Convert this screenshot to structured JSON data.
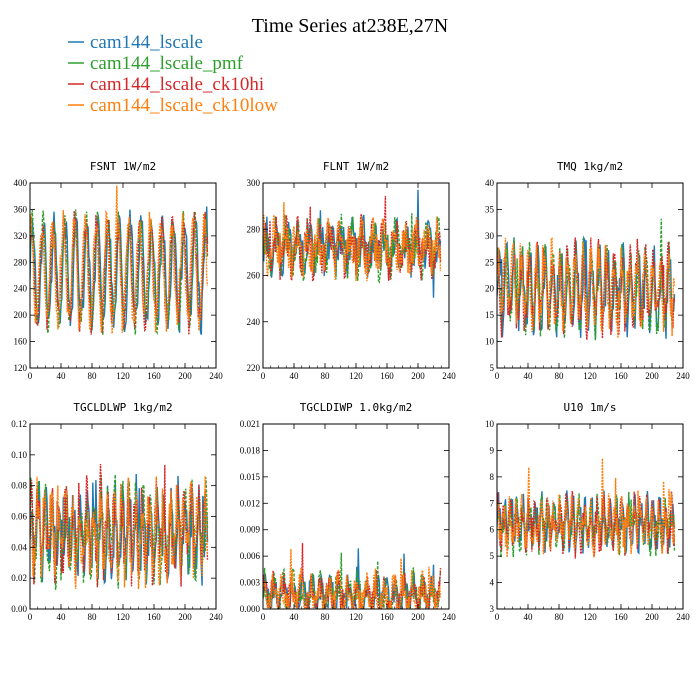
{
  "figure": {
    "title": "Time Series at238E,27N"
  },
  "legend": [
    {
      "label": "cam144_lscale",
      "color": "#1f77b4"
    },
    {
      "label": "cam144_lscale_pmf",
      "color": "#2ca02c"
    },
    {
      "label": "cam144_lscale_ck10hi",
      "color": "#d62728"
    },
    {
      "label": "cam144_lscale_ck10low",
      "color": "#ff7f0e"
    }
  ],
  "chart_data": [
    {
      "type": "line",
      "title": "FSNT  1W/m2",
      "xlim": [
        0,
        240
      ],
      "xticks": [
        "0",
        "40",
        "80",
        "120",
        "160",
        "200",
        "240"
      ],
      "ylim": [
        120,
        400
      ],
      "yticks": [
        "120",
        "160",
        "200",
        "240",
        "280",
        "320",
        "360",
        "400"
      ],
      "n_points": 230,
      "series_summary": {
        "baseline": 265,
        "amplitude": 75,
        "period": 14,
        "noise": 22
      }
    },
    {
      "type": "line",
      "title": "FLNT  1W/m2",
      "xlim": [
        0,
        240
      ],
      "xticks": [
        "0",
        "40",
        "80",
        "120",
        "160",
        "200",
        "240"
      ],
      "ylim": [
        220,
        300
      ],
      "yticks": [
        "220",
        "240",
        "260",
        "280",
        "300"
      ],
      "n_points": 230,
      "series_summary": {
        "baseline": 272,
        "amplitude": 6,
        "period": 14,
        "noise": 9
      }
    },
    {
      "type": "line",
      "title": "TMQ  1kg/m2",
      "xlim": [
        0,
        240
      ],
      "xticks": [
        "0",
        "40",
        "80",
        "120",
        "160",
        "200",
        "240"
      ],
      "ylim": [
        5,
        40
      ],
      "yticks": [
        "5",
        "10",
        "15",
        "20",
        "25",
        "30",
        "35",
        "40"
      ],
      "n_points": 230,
      "series_summary": {
        "baseline": 20,
        "amplitude": 6,
        "period": 10,
        "noise": 4
      }
    },
    {
      "type": "line",
      "title": "TGCLDLWP  1kg/m2",
      "xlim": [
        0,
        240
      ],
      "xticks": [
        "0",
        "40",
        "80",
        "120",
        "160",
        "200",
        "240"
      ],
      "ylim": [
        0.0,
        0.12
      ],
      "yticks": [
        "0.00",
        "0.02",
        "0.04",
        "0.06",
        "0.08",
        "0.10",
        "0.12"
      ],
      "n_points": 230,
      "series_summary": {
        "baseline": 0.05,
        "amplitude": 0.02,
        "period": 9,
        "noise": 0.018
      }
    },
    {
      "type": "line",
      "title": "TGCLDIWP  1.0kg/m2",
      "xlim": [
        0,
        240
      ],
      "xticks": [
        "0",
        "40",
        "80",
        "120",
        "160",
        "200",
        "240"
      ],
      "ylim": [
        0.0,
        0.021
      ],
      "yticks": [
        "0.000",
        "0.003",
        "0.006",
        "0.009",
        "0.012",
        "0.015",
        "0.018",
        "0.021"
      ],
      "n_points": 230,
      "series_summary": {
        "baseline": 0.0015,
        "amplitude": 0.0015,
        "period": 12,
        "noise": 0.0018
      }
    },
    {
      "type": "line",
      "title": "U10  1m/s",
      "xlim": [
        0,
        240
      ],
      "xticks": [
        "0",
        "40",
        "80",
        "120",
        "160",
        "200",
        "240"
      ],
      "ylim": [
        3,
        10
      ],
      "yticks": [
        "3",
        "4",
        "5",
        "6",
        "7",
        "8",
        "9",
        "10"
      ],
      "n_points": 230,
      "series_summary": {
        "baseline": 6.2,
        "amplitude": 0.6,
        "period": 8,
        "noise": 0.7
      }
    }
  ]
}
